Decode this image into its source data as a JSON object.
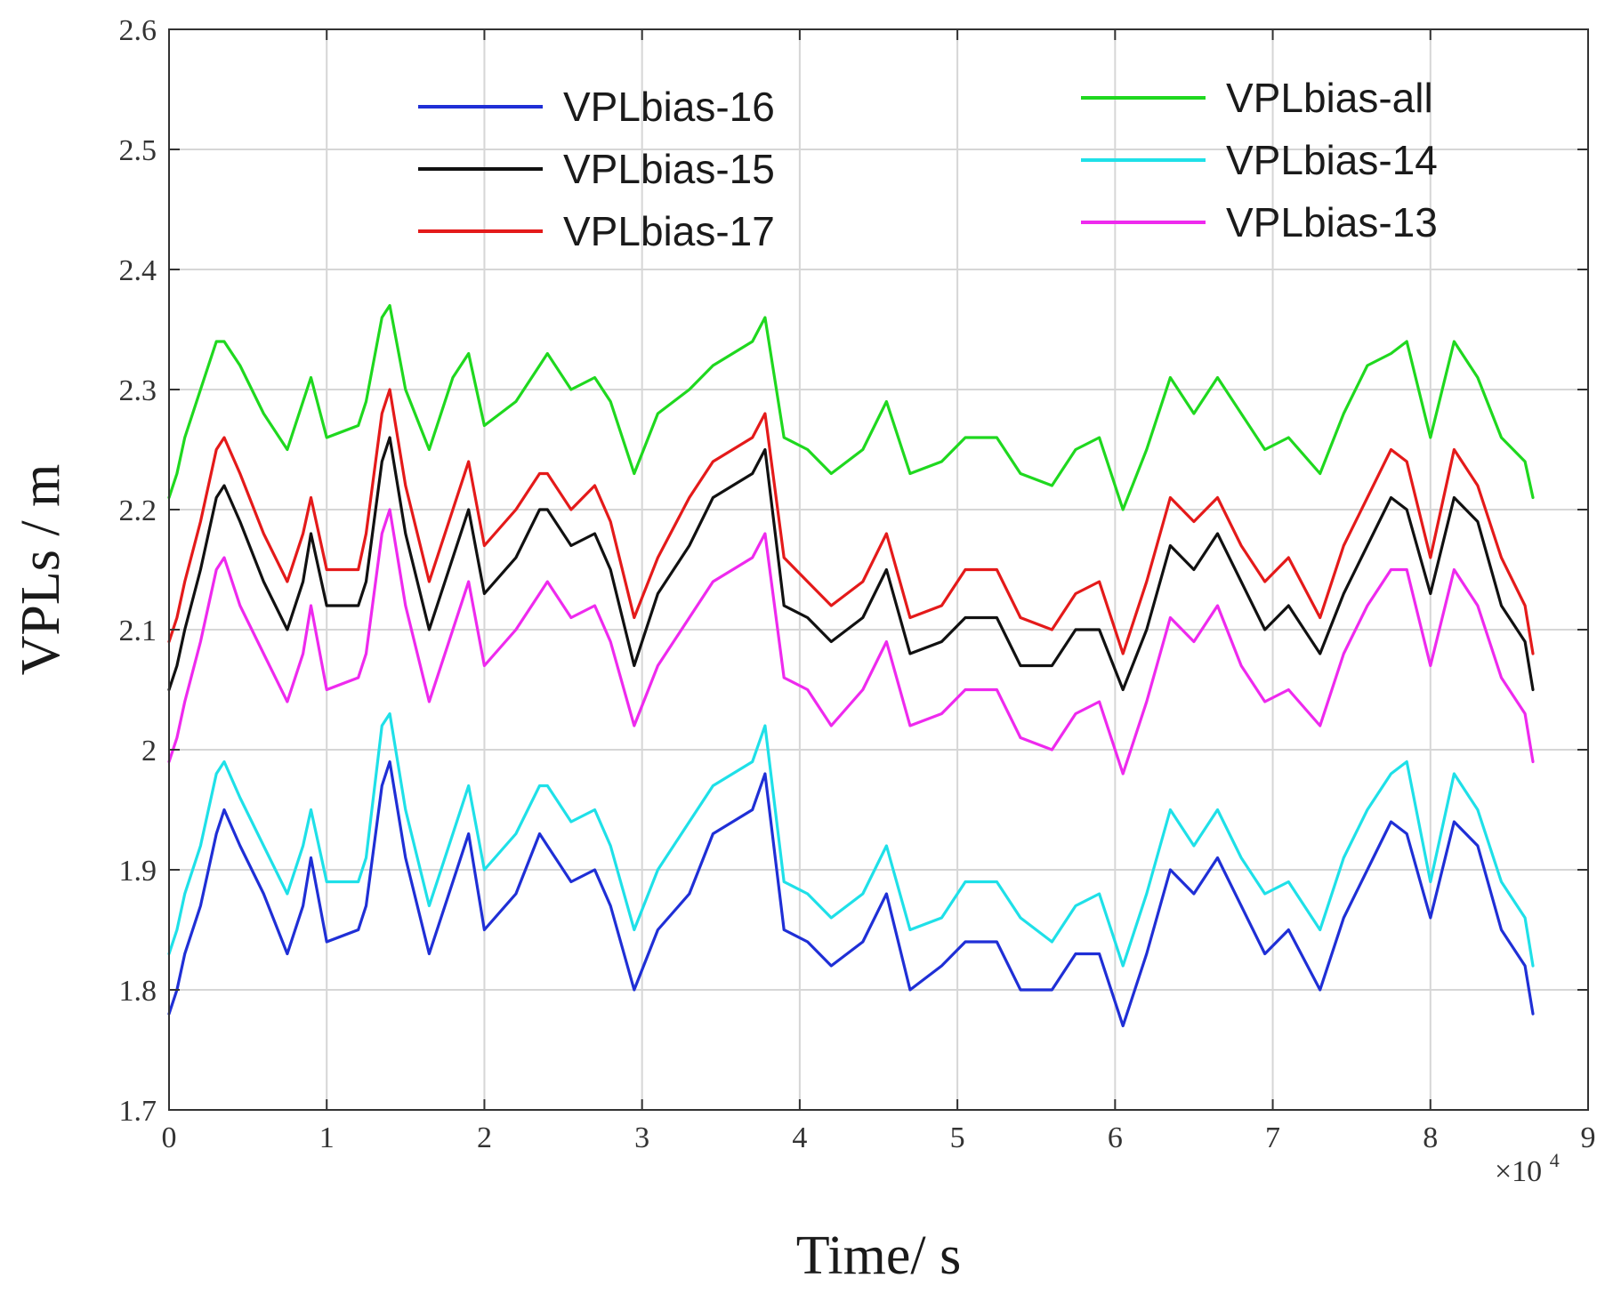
{
  "chart_data": {
    "type": "line",
    "title": "",
    "xlabel": "Time/ s",
    "ylabel": "VPLs / m",
    "x_multiplier_text": "×10",
    "x_multiplier_exponent": "4",
    "xlim": [
      0,
      9
    ],
    "ylim": [
      1.7,
      2.6
    ],
    "x_ticks": [
      0,
      1,
      2,
      3,
      4,
      5,
      6,
      7,
      8,
      9
    ],
    "x_tick_labels": [
      "0",
      "1",
      "2",
      "3",
      "4",
      "5",
      "6",
      "7",
      "8",
      "9"
    ],
    "y_ticks": [
      1.7,
      1.8,
      1.9,
      2.0,
      2.1,
      2.2,
      2.3,
      2.4,
      2.5,
      2.6
    ],
    "y_tick_labels": [
      "1.7",
      "1.8",
      "1.9",
      "2",
      "2.1",
      "2.2",
      "2.3",
      "2.4",
      "2.5",
      "2.6"
    ],
    "grid": true,
    "legend": "top",
    "x": [
      0,
      0.05,
      0.1,
      0.2,
      0.3,
      0.35,
      0.45,
      0.6,
      0.75,
      0.85,
      0.9,
      1.0,
      1.2,
      1.25,
      1.35,
      1.4,
      1.5,
      1.65,
      1.8,
      1.9,
      2.0,
      2.2,
      2.35,
      2.4,
      2.55,
      2.7,
      2.8,
      2.95,
      3.1,
      3.3,
      3.45,
      3.7,
      3.78,
      3.9,
      4.05,
      4.2,
      4.4,
      4.55,
      4.7,
      4.9,
      5.05,
      5.25,
      5.4,
      5.6,
      5.75,
      5.9,
      6.05,
      6.2,
      6.35,
      6.5,
      6.65,
      6.8,
      6.95,
      7.1,
      7.3,
      7.45,
      7.6,
      7.75,
      7.85,
      8.0,
      8.15,
      8.3,
      8.45,
      8.6,
      8.65
    ],
    "series": [
      {
        "name": "VPLbias-16",
        "color": "#1f2fd6",
        "values": [
          1.78,
          1.8,
          1.83,
          1.87,
          1.93,
          1.95,
          1.92,
          1.88,
          1.83,
          1.87,
          1.91,
          1.84,
          1.85,
          1.87,
          1.97,
          1.99,
          1.91,
          1.83,
          1.89,
          1.93,
          1.85,
          1.88,
          1.93,
          1.92,
          1.89,
          1.9,
          1.87,
          1.8,
          1.85,
          1.88,
          1.93,
          1.95,
          1.98,
          1.85,
          1.84,
          1.82,
          1.84,
          1.88,
          1.8,
          1.82,
          1.84,
          1.84,
          1.8,
          1.8,
          1.83,
          1.83,
          1.77,
          1.83,
          1.9,
          1.88,
          1.91,
          1.87,
          1.83,
          1.85,
          1.8,
          1.86,
          1.9,
          1.94,
          1.93,
          1.86,
          1.94,
          1.92,
          1.85,
          1.82,
          1.78
        ]
      },
      {
        "name": "VPLbias-15",
        "color": "#111111",
        "values": [
          2.05,
          2.07,
          2.1,
          2.15,
          2.21,
          2.22,
          2.19,
          2.14,
          2.1,
          2.14,
          2.18,
          2.12,
          2.12,
          2.14,
          2.24,
          2.26,
          2.18,
          2.1,
          2.16,
          2.2,
          2.13,
          2.16,
          2.2,
          2.2,
          2.17,
          2.18,
          2.15,
          2.07,
          2.13,
          2.17,
          2.21,
          2.23,
          2.25,
          2.12,
          2.11,
          2.09,
          2.11,
          2.15,
          2.08,
          2.09,
          2.11,
          2.11,
          2.07,
          2.07,
          2.1,
          2.1,
          2.05,
          2.1,
          2.17,
          2.15,
          2.18,
          2.14,
          2.1,
          2.12,
          2.08,
          2.13,
          2.17,
          2.21,
          2.2,
          2.13,
          2.21,
          2.19,
          2.12,
          2.09,
          2.05
        ]
      },
      {
        "name": "VPLbias-17",
        "color": "#e41a1a",
        "values": [
          2.09,
          2.11,
          2.14,
          2.19,
          2.25,
          2.26,
          2.23,
          2.18,
          2.14,
          2.18,
          2.21,
          2.15,
          2.15,
          2.18,
          2.28,
          2.3,
          2.22,
          2.14,
          2.2,
          2.24,
          2.17,
          2.2,
          2.23,
          2.23,
          2.2,
          2.22,
          2.19,
          2.11,
          2.16,
          2.21,
          2.24,
          2.26,
          2.28,
          2.16,
          2.14,
          2.12,
          2.14,
          2.18,
          2.11,
          2.12,
          2.15,
          2.15,
          2.11,
          2.1,
          2.13,
          2.14,
          2.08,
          2.14,
          2.21,
          2.19,
          2.21,
          2.17,
          2.14,
          2.16,
          2.11,
          2.17,
          2.21,
          2.25,
          2.24,
          2.16,
          2.25,
          2.22,
          2.16,
          2.12,
          2.08
        ]
      },
      {
        "name": "VPLbias-all",
        "color": "#1fd81f",
        "values": [
          2.21,
          2.23,
          2.26,
          2.3,
          2.34,
          2.34,
          2.32,
          2.28,
          2.25,
          2.29,
          2.31,
          2.26,
          2.27,
          2.29,
          2.36,
          2.37,
          2.3,
          2.25,
          2.31,
          2.33,
          2.27,
          2.29,
          2.32,
          2.33,
          2.3,
          2.31,
          2.29,
          2.23,
          2.28,
          2.3,
          2.32,
          2.34,
          2.36,
          2.26,
          2.25,
          2.23,
          2.25,
          2.29,
          2.23,
          2.24,
          2.26,
          2.26,
          2.23,
          2.22,
          2.25,
          2.26,
          2.2,
          2.25,
          2.31,
          2.28,
          2.31,
          2.28,
          2.25,
          2.26,
          2.23,
          2.28,
          2.32,
          2.33,
          2.34,
          2.26,
          2.34,
          2.31,
          2.26,
          2.24,
          2.21
        ]
      },
      {
        "name": "VPLbias-14",
        "color": "#1fe0e8",
        "values": [
          1.83,
          1.85,
          1.88,
          1.92,
          1.98,
          1.99,
          1.96,
          1.92,
          1.88,
          1.92,
          1.95,
          1.89,
          1.89,
          1.91,
          2.02,
          2.03,
          1.95,
          1.87,
          1.93,
          1.97,
          1.9,
          1.93,
          1.97,
          1.97,
          1.94,
          1.95,
          1.92,
          1.85,
          1.9,
          1.94,
          1.97,
          1.99,
          2.02,
          1.89,
          1.88,
          1.86,
          1.88,
          1.92,
          1.85,
          1.86,
          1.89,
          1.89,
          1.86,
          1.84,
          1.87,
          1.88,
          1.82,
          1.88,
          1.95,
          1.92,
          1.95,
          1.91,
          1.88,
          1.89,
          1.85,
          1.91,
          1.95,
          1.98,
          1.99,
          1.89,
          1.98,
          1.95,
          1.89,
          1.86,
          1.82
        ]
      },
      {
        "name": "VPLbias-13",
        "color": "#ee2aee",
        "values": [
          1.99,
          2.01,
          2.04,
          2.09,
          2.15,
          2.16,
          2.12,
          2.08,
          2.04,
          2.08,
          2.12,
          2.05,
          2.06,
          2.08,
          2.18,
          2.2,
          2.12,
          2.04,
          2.1,
          2.14,
          2.07,
          2.1,
          2.13,
          2.14,
          2.11,
          2.12,
          2.09,
          2.02,
          2.07,
          2.11,
          2.14,
          2.16,
          2.18,
          2.06,
          2.05,
          2.02,
          2.05,
          2.09,
          2.02,
          2.03,
          2.05,
          2.05,
          2.01,
          2.0,
          2.03,
          2.04,
          1.98,
          2.04,
          2.11,
          2.09,
          2.12,
          2.07,
          2.04,
          2.05,
          2.02,
          2.08,
          2.12,
          2.15,
          2.15,
          2.07,
          2.15,
          2.12,
          2.06,
          2.03,
          1.99
        ]
      }
    ],
    "legend_groups": [
      [
        "VPLbias-16",
        "VPLbias-15",
        "VPLbias-17"
      ],
      [
        "VPLbias-all",
        "VPLbias-14",
        "VPLbias-13"
      ]
    ]
  }
}
